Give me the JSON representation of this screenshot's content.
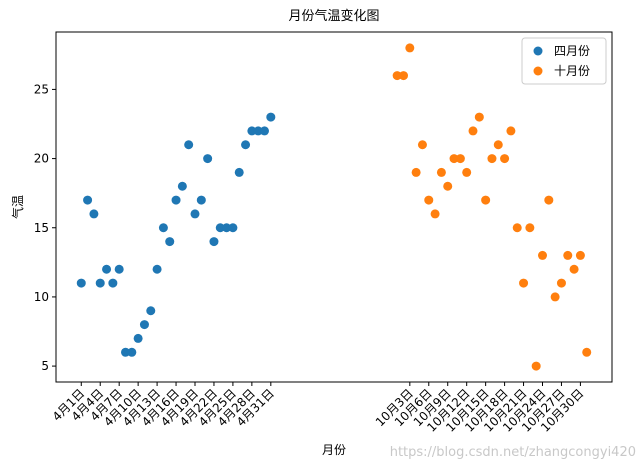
{
  "chart_data": {
    "type": "scatter",
    "title": "月份气温变化图",
    "x_label": "月份",
    "y_label": "气温",
    "series": [
      {
        "name": "四月份",
        "color": "#1f77b4",
        "x": [
          1,
          2,
          3,
          4,
          5,
          6,
          7,
          8,
          9,
          10,
          11,
          12,
          13,
          14,
          15,
          16,
          17,
          18,
          19,
          20,
          21,
          22,
          23,
          24,
          25,
          26,
          27,
          28,
          29,
          30,
          31
        ],
        "values": [
          11,
          17,
          16,
          11,
          12,
          11,
          12,
          6,
          6,
          7,
          8,
          9,
          12,
          15,
          14,
          17,
          18,
          21,
          16,
          17,
          20,
          14,
          15,
          15,
          15,
          19,
          21,
          22,
          22,
          22,
          23
        ]
      },
      {
        "name": "十月份",
        "color": "#ff7f0e",
        "x": [
          51,
          52,
          53,
          54,
          55,
          56,
          57,
          58,
          59,
          60,
          61,
          62,
          63,
          64,
          65,
          66,
          67,
          68,
          69,
          70,
          71,
          72,
          73,
          74,
          75,
          76,
          77,
          78,
          79,
          80,
          81
        ],
        "values": [
          26,
          26,
          28,
          19,
          21,
          17,
          16,
          19,
          18,
          20,
          20,
          19,
          22,
          23,
          17,
          20,
          21,
          20,
          22,
          15,
          11,
          15,
          5,
          13,
          17,
          10,
          11,
          13,
          12,
          13,
          6
        ]
      }
    ],
    "xlim": [
      -3,
      85
    ],
    "ylim": [
      3.85,
      29.15
    ],
    "xticks": [
      {
        "value": 1,
        "label": "4月1日"
      },
      {
        "value": 4,
        "label": "4月4日"
      },
      {
        "value": 7,
        "label": "4月7日"
      },
      {
        "value": 10,
        "label": "4月10日"
      },
      {
        "value": 13,
        "label": "4月13日"
      },
      {
        "value": 16,
        "label": "4月16日"
      },
      {
        "value": 19,
        "label": "4月19日"
      },
      {
        "value": 22,
        "label": "4月22日"
      },
      {
        "value": 25,
        "label": "4月25日"
      },
      {
        "value": 28,
        "label": "4月28日"
      },
      {
        "value": 31,
        "label": "4月31日"
      },
      {
        "value": 53,
        "label": "10月3日"
      },
      {
        "value": 56,
        "label": "10月6日"
      },
      {
        "value": 59,
        "label": "10月9日"
      },
      {
        "value": 62,
        "label": "10月12日"
      },
      {
        "value": 65,
        "label": "10月15日"
      },
      {
        "value": 68,
        "label": "10月18日"
      },
      {
        "value": 71,
        "label": "10月21日"
      },
      {
        "value": 74,
        "label": "10月24日"
      },
      {
        "value": 77,
        "label": "10月27日"
      },
      {
        "value": 80,
        "label": "10月30日"
      }
    ],
    "yticks": [
      5,
      10,
      15,
      20,
      25
    ],
    "legend": "upper right",
    "watermark": "https://blog.csdn.net/zhangcongyi420"
  }
}
